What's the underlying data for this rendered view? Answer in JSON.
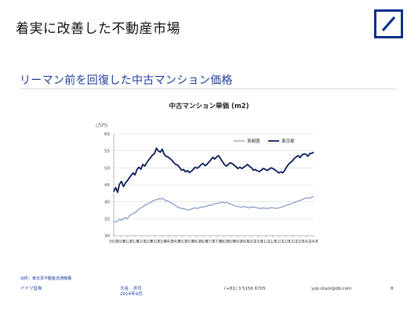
{
  "slide": {
    "title": "着実に改善した不動産市場",
    "section_title": "リーマン前を回復した中古マンション価格",
    "source": "出所：東日本不動産流通機構",
    "footer": {
      "company": "ドイツ証券",
      "author": "大谷　洋司",
      "date": "2014年9月",
      "phone": "(+81) 3 5156 6705",
      "email": "yoji.otani@db.com",
      "page": "8"
    }
  },
  "colors": {
    "tokyo": "#0b1d5c",
    "capital_area": "#8a9cc8",
    "brand": "#0b2f8a",
    "accent_text": "#1d3f9e"
  },
  "chart_data": {
    "type": "line",
    "title": "中古マンション単価 (m2)",
    "ylabel": "(万円)",
    "ylim": [
      30,
      60
    ],
    "yticks": [
      30,
      35,
      40,
      45,
      50,
      55,
      60
    ],
    "x_tick_labels": [
      "00/2",
      "00/8",
      "01/2",
      "01/8",
      "02/2",
      "02/8",
      "03/2",
      "03/8",
      "04/2",
      "04/8",
      "05/2",
      "05/8",
      "06/2",
      "06/8",
      "07/2",
      "07/8",
      "08/2",
      "08/8",
      "09/2",
      "09/8",
      "10/2",
      "10/8",
      "11/2",
      "11/8",
      "12/2",
      "12/8",
      "13/2",
      "13/8",
      "14/2",
      "14/8"
    ],
    "legend_position": "top-right",
    "grid": true,
    "series": [
      {
        "name": "首都圏",
        "color": "#8a9cc8",
        "values": [
          34.2,
          34.0,
          34.3,
          34.8,
          34.5,
          35.0,
          35.3,
          35.0,
          35.8,
          36.2,
          36.5,
          36.8,
          37.3,
          37.8,
          38.2,
          38.5,
          39.0,
          39.2,
          39.5,
          39.8,
          40.2,
          40.5,
          40.6,
          40.9,
          40.8,
          41.0,
          40.6,
          40.3,
          40.2,
          39.8,
          39.6,
          39.2,
          38.8,
          38.4,
          38.2,
          38.0,
          38.0,
          37.8,
          37.6,
          37.7,
          37.8,
          38.1,
          38.2,
          38.0,
          38.2,
          38.5,
          38.4,
          38.6,
          38.8,
          39.0,
          38.9,
          39.2,
          39.4,
          39.5,
          39.6,
          39.8,
          39.9,
          39.7,
          39.8,
          39.6,
          39.4,
          39.2,
          38.9,
          38.7,
          38.6,
          38.5,
          38.4,
          38.6,
          38.5,
          38.3,
          38.2,
          38.4,
          38.5,
          38.3,
          38.2,
          38.1,
          38.0,
          38.2,
          38.1,
          38.0,
          38.1,
          38.3,
          38.2,
          38.1,
          38.0,
          38.2,
          38.4,
          38.5,
          38.8,
          39.0,
          39.1,
          39.3,
          39.5,
          39.8,
          40.0,
          40.2,
          40.4,
          40.6,
          40.9,
          41.0,
          41.2,
          41.0,
          41.4,
          41.5
        ]
      },
      {
        "name": "東京都",
        "color": "#0b1d5c",
        "values": [
          43.0,
          44.2,
          42.8,
          45.2,
          46.0,
          44.5,
          45.5,
          46.2,
          47.0,
          47.8,
          48.5,
          47.9,
          49.5,
          50.2,
          49.6,
          51.0,
          50.5,
          51.5,
          52.3,
          53.0,
          53.8,
          54.2,
          55.8,
          55.0,
          54.6,
          55.5,
          54.0,
          53.4,
          53.2,
          52.7,
          52.2,
          51.5,
          51.0,
          50.8,
          50.0,
          49.3,
          49.5,
          48.8,
          49.2,
          48.6,
          49.0,
          49.6,
          50.2,
          49.9,
          50.3,
          50.9,
          51.3,
          50.6,
          51.0,
          51.7,
          52.3,
          53.1,
          52.6,
          53.2,
          53.6,
          52.7,
          51.8,
          51.0,
          50.5,
          51.0,
          51.5,
          51.2,
          50.8,
          50.3,
          49.8,
          50.2,
          49.8,
          50.2,
          50.6,
          51.0,
          50.4,
          50.0,
          49.3,
          49.5,
          49.1,
          48.9,
          49.3,
          49.8,
          49.6,
          49.2,
          49.6,
          50.0,
          49.8,
          49.4,
          49.0,
          48.5,
          48.8,
          48.5,
          49.2,
          50.2,
          51.0,
          51.6,
          52.0,
          52.8,
          53.2,
          53.6,
          53.0,
          53.8,
          54.1,
          54.0,
          53.4,
          54.2,
          54.3,
          54.6
        ]
      }
    ]
  }
}
